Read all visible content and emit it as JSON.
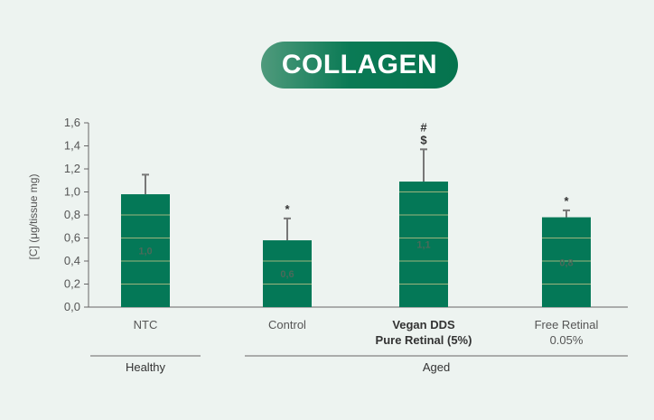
{
  "chart_data": {
    "type": "bar",
    "title": "COLLAGEN",
    "ylabel": "[C] (μg/tissue mg)",
    "ylim": [
      0,
      1.6
    ],
    "yticks": [
      "0,0",
      "0,2",
      "0,4",
      "0,6",
      "0,8",
      "1,0",
      "1,2",
      "1,4",
      "1,6"
    ],
    "categories": [
      {
        "lines": [
          "NTC"
        ],
        "bold": false
      },
      {
        "lines": [
          "Control"
        ],
        "bold": false
      },
      {
        "lines": [
          "Vegan DDS",
          "Pure Retinal (5%)"
        ],
        "bold": true
      },
      {
        "lines": [
          "Free Retinal",
          "0.05%"
        ],
        "bold": false
      }
    ],
    "values": [
      0.98,
      0.58,
      1.09,
      0.78
    ],
    "error_top": [
      1.15,
      0.77,
      1.37,
      0.84
    ],
    "value_labels": [
      "1,0",
      "0,6",
      "1,1",
      "0,8"
    ],
    "significance": [
      [],
      [
        "*"
      ],
      [
        "$",
        "#"
      ],
      [
        "*"
      ]
    ],
    "groups": [
      {
        "label": "Healthy",
        "categories": [
          0
        ]
      },
      {
        "label": "Aged",
        "categories": [
          1,
          2,
          3
        ]
      }
    ],
    "colors": {
      "bar": "#047857",
      "stripe": "#9cb37c",
      "axis": "#666666",
      "error": "#777777"
    },
    "grid": false
  }
}
